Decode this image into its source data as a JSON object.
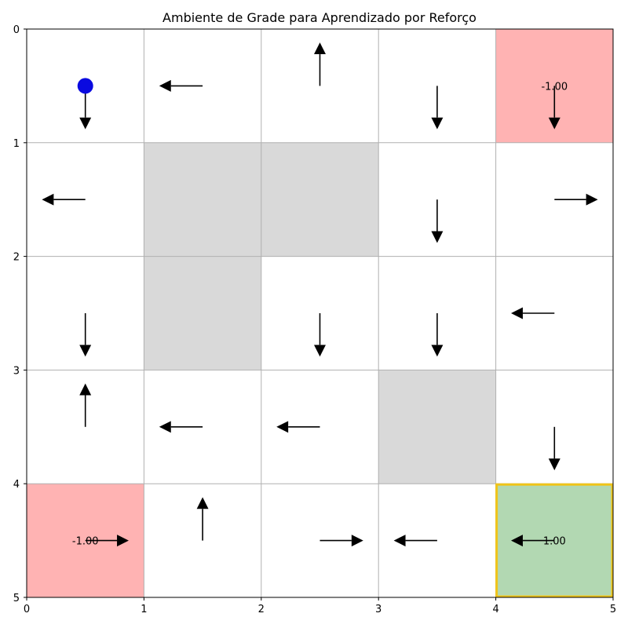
{
  "chart_data": {
    "type": "heatmap",
    "title": "Ambiente de Grade para Aprendizado por Reforço",
    "xlabel": "",
    "ylabel": "",
    "xlim": [
      0,
      5
    ],
    "ylim": [
      5,
      0
    ],
    "x_ticks": [
      "0",
      "1",
      "2",
      "3",
      "4",
      "5"
    ],
    "y_ticks": [
      "0",
      "1",
      "2",
      "3",
      "4",
      "5"
    ],
    "grid": true,
    "colors": {
      "obstacle": "#d9d9d9",
      "negative": "#ffb3b3",
      "goal": "#b2d8b2",
      "goal_border": "#f0c419",
      "agent": "#0a0ae0",
      "grid": "#b0b0b0"
    },
    "obstacles": [
      [
        1,
        1
      ],
      [
        1,
        2
      ],
      [
        2,
        1
      ],
      [
        3,
        3
      ]
    ],
    "special_cells": [
      {
        "row": 0,
        "col": 4,
        "kind": "negative",
        "label": "-1.00"
      },
      {
        "row": 4,
        "col": 0,
        "kind": "negative",
        "label": "-1.00"
      },
      {
        "row": 4,
        "col": 4,
        "kind": "goal",
        "label": "1.00"
      }
    ],
    "agent": {
      "row": 0,
      "col": 0
    },
    "policy": [
      {
        "row": 0,
        "col": 0,
        "action": "down"
      },
      {
        "row": 0,
        "col": 1,
        "action": "left"
      },
      {
        "row": 0,
        "col": 2,
        "action": "up"
      },
      {
        "row": 0,
        "col": 3,
        "action": "down"
      },
      {
        "row": 0,
        "col": 4,
        "action": "down"
      },
      {
        "row": 1,
        "col": 0,
        "action": "left"
      },
      {
        "row": 1,
        "col": 3,
        "action": "down"
      },
      {
        "row": 1,
        "col": 4,
        "action": "right"
      },
      {
        "row": 2,
        "col": 0,
        "action": "down"
      },
      {
        "row": 2,
        "col": 2,
        "action": "down"
      },
      {
        "row": 2,
        "col": 3,
        "action": "down"
      },
      {
        "row": 2,
        "col": 4,
        "action": "left"
      },
      {
        "row": 3,
        "col": 0,
        "action": "up"
      },
      {
        "row": 3,
        "col": 1,
        "action": "left"
      },
      {
        "row": 3,
        "col": 2,
        "action": "left"
      },
      {
        "row": 3,
        "col": 4,
        "action": "down"
      },
      {
        "row": 4,
        "col": 0,
        "action": "right"
      },
      {
        "row": 4,
        "col": 1,
        "action": "up"
      },
      {
        "row": 4,
        "col": 2,
        "action": "right"
      },
      {
        "row": 4,
        "col": 3,
        "action": "left"
      },
      {
        "row": 4,
        "col": 4,
        "action": "left"
      }
    ]
  }
}
